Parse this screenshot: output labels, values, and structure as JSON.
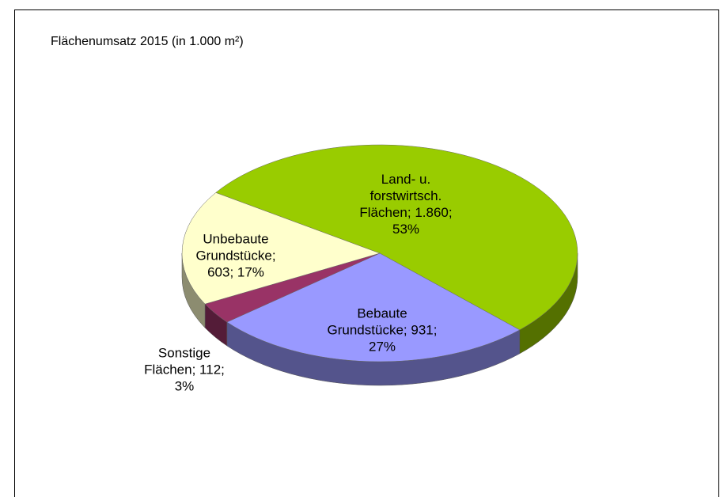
{
  "chart_data": {
    "type": "pie",
    "title": "Flächenumsatz 2015 (in 1.000 m²)",
    "categories": [
      "Land- u. forstwirtsch. Flächen",
      "Bebaute Grundstücke",
      "Sonstige Flächen",
      "Unbebaute Grundstücke"
    ],
    "values": [
      1860,
      931,
      112,
      603
    ],
    "value_labels": [
      "1.860",
      "931",
      "112",
      "603"
    ],
    "percent_labels": [
      "53%",
      "27%",
      "3%",
      "17%"
    ],
    "colors": [
      "#99cc00",
      "#9999ff",
      "#993366",
      "#ffffcc"
    ]
  }
}
